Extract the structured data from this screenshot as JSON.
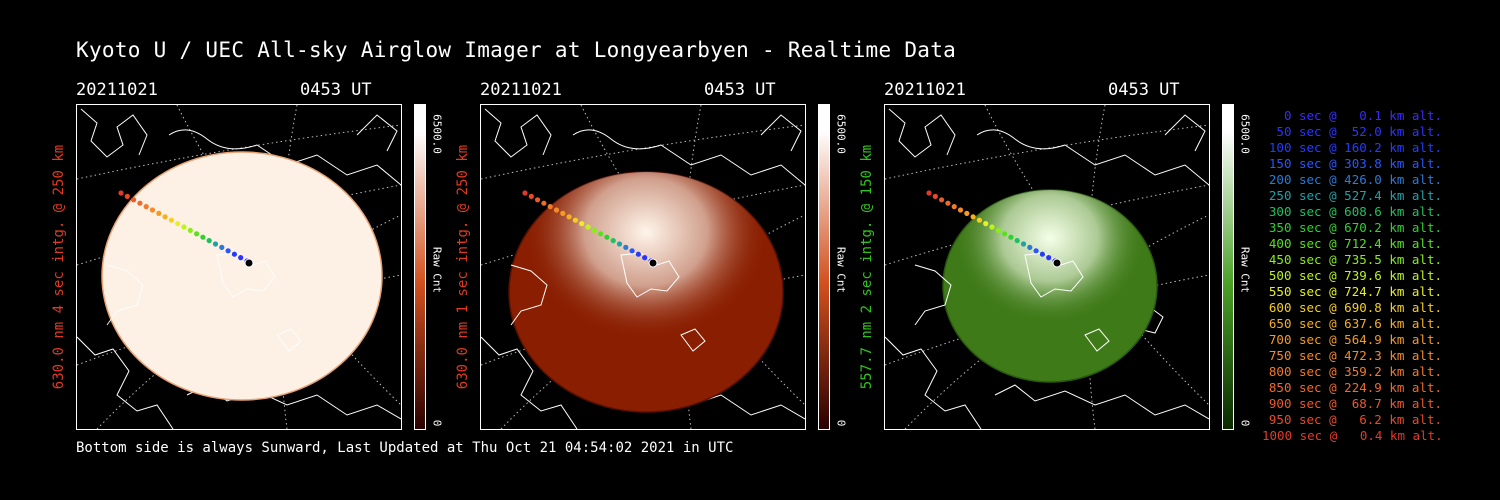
{
  "title": "Kyoto U / UEC All-sky Airglow Imager at Longyearbyen - Realtime Data",
  "footer": "Bottom side is always Sunward, Last Updated at Thu Oct 21 04:54:02 2021 in UTC",
  "panels": [
    {
      "date": "20211021",
      "time": "0453 UT",
      "side_label": "630.0 nm 4 sec intg. @ 250 km",
      "side_color": "#e03a1e",
      "cbar_max": "6500.0",
      "cbar_unit": "Raw Cnt",
      "cbar_min": "0",
      "colors": {
        "low": "#ffffff",
        "mid": "#d2501e",
        "high": "#2a0000"
      }
    },
    {
      "date": "20211021",
      "time": "0453 UT",
      "side_label": "630.0 nm 1 sec intg. @ 250 km",
      "side_color": "#e03a1e",
      "cbar_max": "6500.0",
      "cbar_unit": "Raw Cnt",
      "cbar_min": "0",
      "colors": {
        "low": "#ffffff",
        "mid": "#d2501e",
        "high": "#2a0000"
      }
    },
    {
      "date": "20211021",
      "time": "0453 UT",
      "side_label": "557.7 nm 2 sec intg. @ 150 km",
      "side_color": "#2fc41a",
      "cbar_max": "6500.0",
      "cbar_unit": "Raw Cnt",
      "cbar_min": "0",
      "colors": {
        "low": "#ffffff",
        "mid": "#4aa126",
        "high": "#0a2a00"
      }
    }
  ],
  "legend": [
    {
      "text": "0 sec @   0.1 km alt.",
      "color": "#3a2cff"
    },
    {
      "text": "50 sec @  52.0 km alt.",
      "color": "#2d33ff"
    },
    {
      "text": "100 sec @ 160.2 km alt.",
      "color": "#243cff"
    },
    {
      "text": "150 sec @ 303.8 km alt.",
      "color": "#2a55ff"
    },
    {
      "text": "200 sec @ 426.0 km alt.",
      "color": "#2a7ad6"
    },
    {
      "text": "250 sec @ 527.4 km alt.",
      "color": "#22a0a8"
    },
    {
      "text": "300 sec @ 608.6 km alt.",
      "color": "#20c060"
    },
    {
      "text": "350 sec @ 670.2 km alt.",
      "color": "#30d030"
    },
    {
      "text": "400 sec @ 712.4 km alt.",
      "color": "#58e020"
    },
    {
      "text": "450 sec @ 735.5 km alt.",
      "color": "#88ee18"
    },
    {
      "text": "500 sec @ 739.6 km alt.",
      "color": "#bdf51a"
    },
    {
      "text": "550 sec @ 724.7 km alt.",
      "color": "#e8f020"
    },
    {
      "text": "600 sec @ 690.8 km alt.",
      "color": "#f5d020"
    },
    {
      "text": "650 sec @ 637.6 km alt.",
      "color": "#f5b020"
    },
    {
      "text": "700 sec @ 564.9 km alt.",
      "color": "#f59a22"
    },
    {
      "text": "750 sec @ 472.3 km alt.",
      "color": "#f58a28"
    },
    {
      "text": "800 sec @ 359.2 km alt.",
      "color": "#f27a2a"
    },
    {
      "text": "850 sec @ 224.9 km alt.",
      "color": "#ee6a2a"
    },
    {
      "text": "900 sec @  68.7 km alt.",
      "color": "#ea5a2a"
    },
    {
      "text": "950 sec @   6.2 km alt.",
      "color": "#e64a2a"
    },
    {
      "text": "1000 sec @   0.4 km alt.",
      "color": "#e23a2a"
    }
  ]
}
